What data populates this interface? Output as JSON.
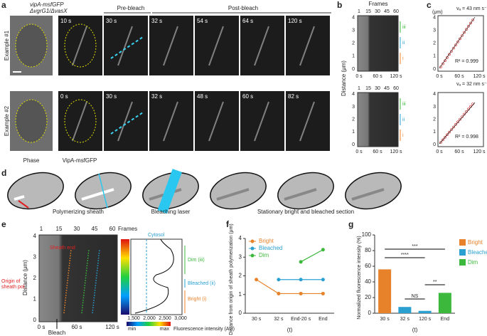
{
  "panels": {
    "a": {
      "label": "a",
      "strain": "vipA-msfGFP",
      "genotype": "ΔvgrG1/ΔvasX",
      "prebleach": "Pre-bleach",
      "postbleach": "Post-bleach",
      "rows": [
        {
          "name": "Example #1",
          "times": [
            "10 s",
            "30 s",
            "32 s",
            "54 s",
            "64 s",
            "120 s"
          ]
        },
        {
          "name": "Example #2",
          "times": [
            "0 s",
            "30 s",
            "32 s",
            "48 s",
            "60 s",
            "82 s"
          ]
        }
      ],
      "captions": [
        "Phase",
        "VipA-msfGFP"
      ]
    },
    "b": {
      "label": "b",
      "top_label": "Frames",
      "top_ticks": [
        1,
        15,
        30,
        45,
        60
      ],
      "y_label": "Distance (μm)",
      "y_ticks": [
        0,
        1,
        2,
        3,
        4
      ],
      "x_ticks": [
        "0 s",
        "60 s",
        "120 s"
      ],
      "regions": [
        "iii",
        "ii",
        "i"
      ]
    },
    "c": {
      "label": "c",
      "y_unit": "(μm)",
      "y_ticks": [
        0,
        1,
        2,
        3,
        4
      ],
      "x_ticks": [
        "0 s",
        "60 s",
        "120 s"
      ],
      "fits": [
        {
          "velocity": "vₐ = 43 nm s⁻¹",
          "r2": "R² = 0.999"
        },
        {
          "velocity": "vₐ = 32 nm s⁻¹",
          "r2": "R² = 0.998"
        }
      ]
    },
    "d": {
      "label": "d",
      "captions": [
        "Polymerizing sheath",
        "Bleaching laser",
        "Stationary bright and bleached section"
      ]
    },
    "e": {
      "label": "e",
      "top_label": "Frames",
      "top_ticks": [
        1,
        15,
        30,
        45,
        60
      ],
      "y_label": "Distance (μm)",
      "y_ticks": [
        0,
        1,
        2,
        3,
        4
      ],
      "x_ticks": [
        "0 s",
        "60 s",
        "120 s"
      ],
      "sheath_end": "Sheath end",
      "origin": "Origin of sheath pol.",
      "bleach": "Bleach",
      "colorbar": [
        "min",
        "max"
      ],
      "colorbar_label": "Fluorescence intensity (AU)",
      "profile_ticks": [
        "1,500",
        "2,000",
        "2,500",
        "3,000"
      ],
      "cytosol": "Cytosol",
      "regions": [
        "Dim (iii)",
        "Bleached (ii)",
        "Bright (i)"
      ]
    }
  },
  "chart_data": [
    {
      "type": "line",
      "panel": "f",
      "x_label": "(t)",
      "y_label": "Distance from origin of sheath polymerization (μm)",
      "categories": [
        "30 s",
        "32 s",
        "End-20 s",
        "End"
      ],
      "ylim": [
        0,
        4
      ],
      "yticks": [
        0,
        1,
        2,
        3,
        4
      ],
      "series": [
        {
          "name": "Bright",
          "color": "#e8822a",
          "values": [
            1.8,
            1.05,
            1.05,
            1.05
          ]
        },
        {
          "name": "Bleached",
          "color": "#2aa0d0",
          "values": [
            null,
            1.8,
            1.8,
            1.8
          ]
        },
        {
          "name": "Dim",
          "color": "#3cb83c",
          "values": [
            null,
            null,
            2.75,
            3.4
          ]
        }
      ]
    },
    {
      "type": "bar",
      "panel": "g",
      "x_label": "(t)",
      "y_label": "Normalized fluorescence intensity (%)",
      "categories": [
        "30 s",
        "32 s",
        "120 s",
        "End"
      ],
      "ylim": [
        0,
        100
      ],
      "yticks": [
        0,
        20,
        40,
        60,
        80,
        100
      ],
      "series": [
        {
          "name": "Bright",
          "color": "#e8822a",
          "values": [
            56,
            null,
            null,
            null
          ]
        },
        {
          "name": "Bleached",
          "color": "#2aa0d0",
          "values": [
            null,
            8,
            3,
            null
          ]
        },
        {
          "name": "Dim",
          "color": "#3cb83c",
          "values": [
            null,
            null,
            null,
            26
          ]
        }
      ],
      "annotations": [
        "****",
        "NS",
        "**",
        "***"
      ]
    }
  ]
}
